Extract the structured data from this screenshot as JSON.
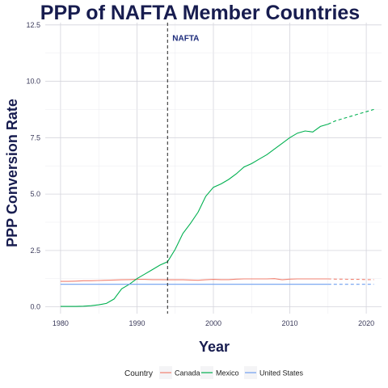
{
  "chart_data": {
    "type": "line",
    "title": "PPP of NAFTA Member Countries",
    "xlabel": "Year",
    "ylabel": "PPP Conversion Rate",
    "xlim": [
      1978,
      2022
    ],
    "ylim": [
      -0.3,
      12.6
    ],
    "x_ticks": [
      1980,
      1990,
      2000,
      2010,
      2020
    ],
    "y_ticks": [
      0,
      2.5,
      5,
      7.5,
      10,
      12.5
    ],
    "y_tick_labels": [
      "0.0",
      "2.5",
      "5.0",
      "7.5",
      "10.0",
      "12.5"
    ],
    "grid": true,
    "legend": {
      "title": "Country",
      "position": "bottom",
      "entries": [
        {
          "name": "Canada",
          "color": "#f08070"
        },
        {
          "name": "Mexico",
          "color": "#00b050"
        },
        {
          "name": "United States",
          "color": "#6e9ff0"
        }
      ]
    },
    "annotation": {
      "label": "NAFTA",
      "x": 1994,
      "line_style": "dashed"
    },
    "forecast_start": 2015,
    "series": [
      {
        "name": "Canada",
        "color": "#f08070",
        "x": [
          1980,
          1981,
          1982,
          1983,
          1984,
          1985,
          1986,
          1987,
          1988,
          1989,
          1990,
          1991,
          1992,
          1993,
          1994,
          1995,
          1996,
          1997,
          1998,
          1999,
          2000,
          2001,
          2002,
          2003,
          2004,
          2005,
          2006,
          2007,
          2008,
          2009,
          2010,
          2011,
          2012,
          2013,
          2014,
          2015
        ],
        "values": [
          1.13,
          1.13,
          1.14,
          1.16,
          1.16,
          1.17,
          1.18,
          1.19,
          1.2,
          1.21,
          1.22,
          1.22,
          1.21,
          1.21,
          1.2,
          1.2,
          1.2,
          1.19,
          1.18,
          1.2,
          1.22,
          1.21,
          1.21,
          1.23,
          1.24,
          1.24,
          1.24,
          1.24,
          1.25,
          1.2,
          1.23,
          1.24,
          1.24,
          1.24,
          1.24,
          1.24
        ],
        "forecast_x": [
          2015,
          2016,
          2017,
          2018,
          2019,
          2020,
          2021
        ],
        "forecast_values": [
          1.24,
          1.23,
          1.23,
          1.22,
          1.22,
          1.21,
          1.21
        ]
      },
      {
        "name": "Mexico",
        "color": "#00b050",
        "x": [
          1980,
          1981,
          1982,
          1983,
          1984,
          1985,
          1986,
          1987,
          1988,
          1989,
          1990,
          1991,
          1992,
          1993,
          1994,
          1995,
          1996,
          1997,
          1998,
          1999,
          2000,
          2001,
          2002,
          2003,
          2004,
          2005,
          2006,
          2007,
          2008,
          2009,
          2010,
          2011,
          2012,
          2013,
          2014,
          2015
        ],
        "values": [
          0.02,
          0.02,
          0.02,
          0.03,
          0.05,
          0.09,
          0.15,
          0.35,
          0.8,
          1.0,
          1.25,
          1.45,
          1.65,
          1.85,
          2.0,
          2.55,
          3.25,
          3.7,
          4.2,
          4.9,
          5.3,
          5.45,
          5.65,
          5.9,
          6.2,
          6.35,
          6.55,
          6.75,
          7.0,
          7.25,
          7.5,
          7.7,
          7.8,
          7.75,
          8.0,
          8.1
        ],
        "forecast_x": [
          2015,
          2016,
          2017,
          2018,
          2019,
          2020,
          2021
        ],
        "forecast_values": [
          8.1,
          8.25,
          8.35,
          8.45,
          8.55,
          8.65,
          8.75
        ]
      },
      {
        "name": "United States",
        "color": "#6e9ff0",
        "x": [
          1980,
          2015
        ],
        "values": [
          1.0,
          1.0
        ],
        "forecast_x": [
          2015,
          2021
        ],
        "forecast_values": [
          1.0,
          1.0
        ]
      }
    ]
  }
}
